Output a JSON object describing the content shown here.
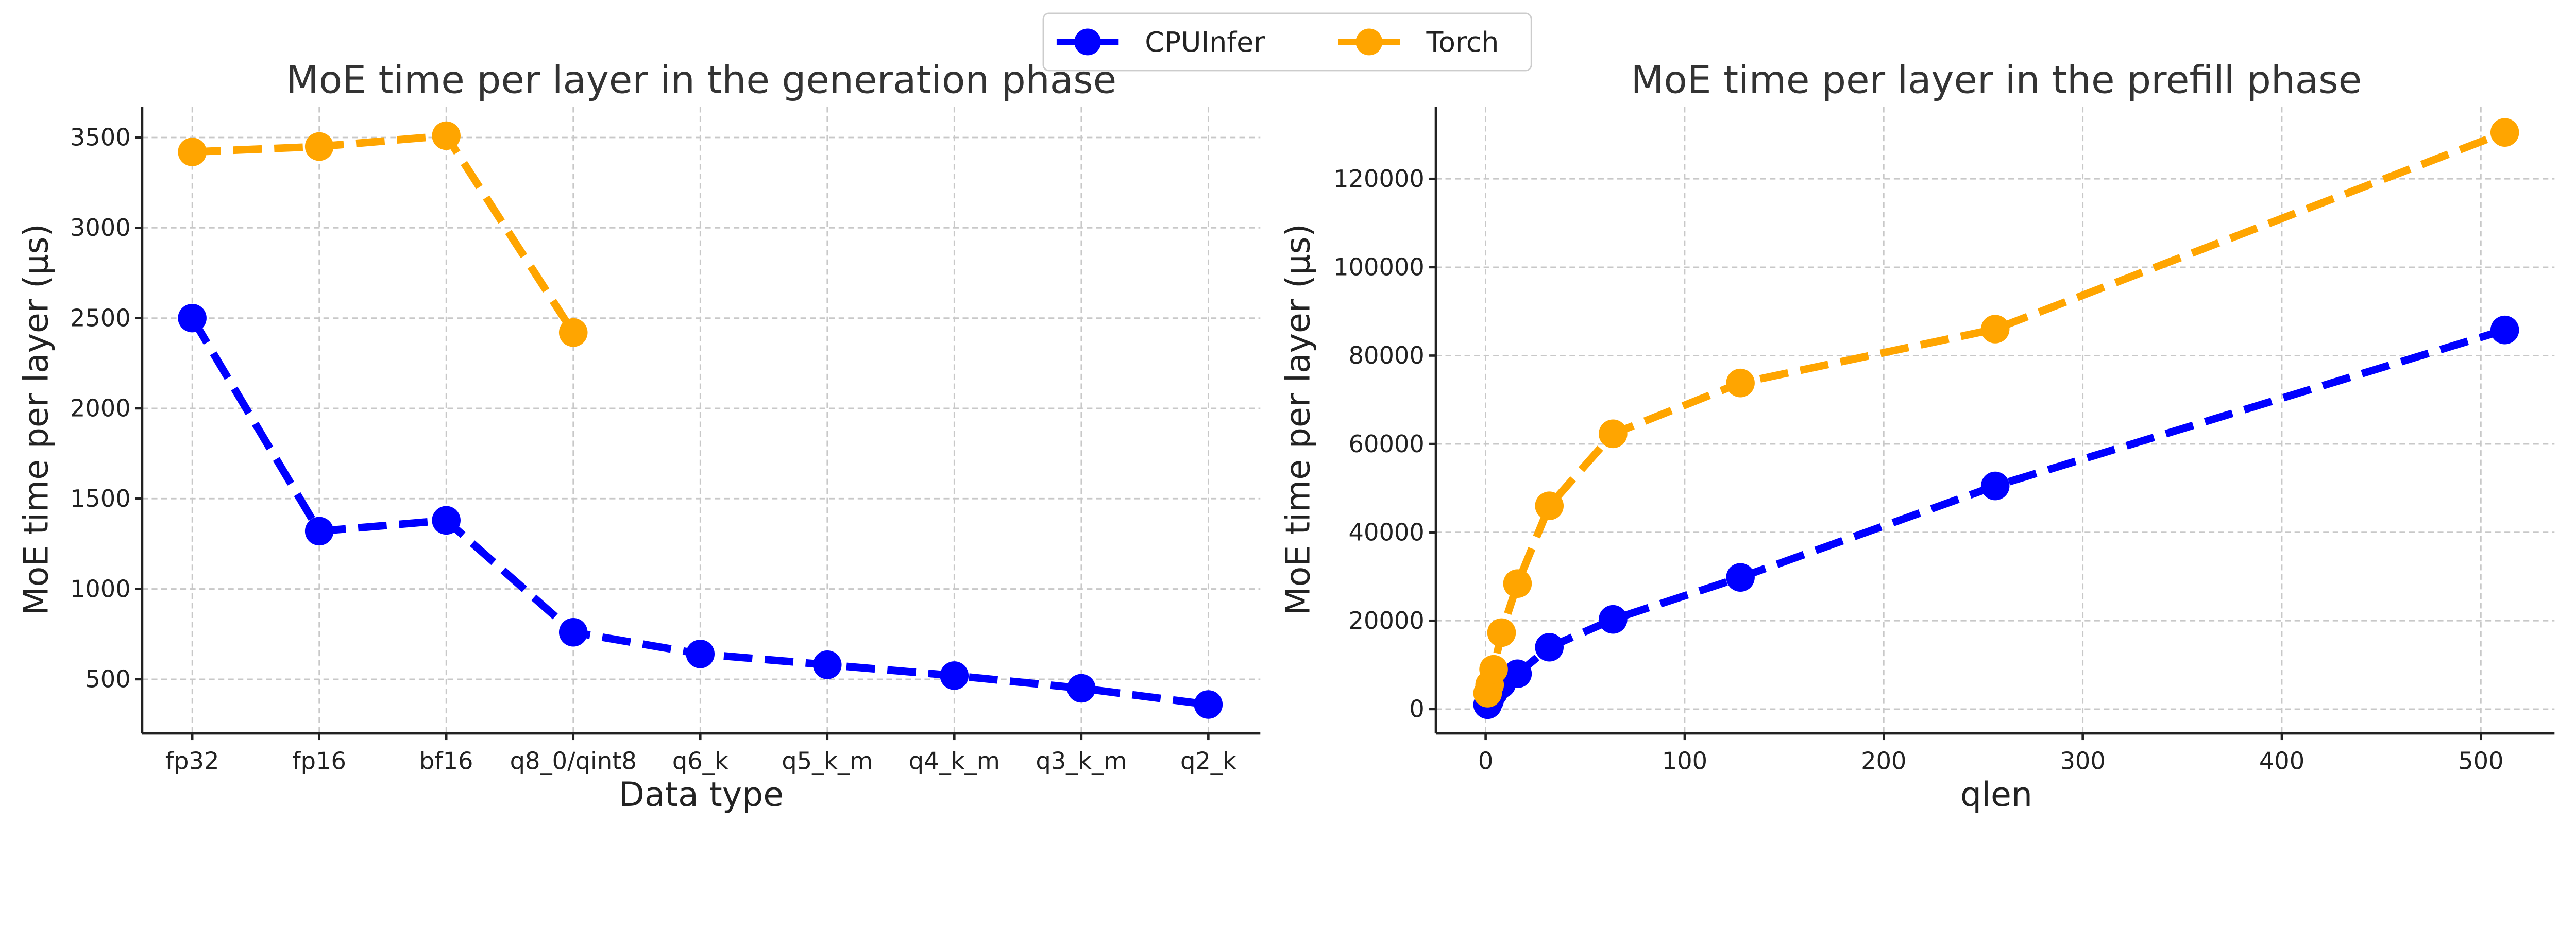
{
  "colors": {
    "CPUInfer": "#0000ff",
    "Torch": "#ffa500"
  },
  "legend": {
    "placement": "top-center",
    "entries": [
      "CPUInfer",
      "Torch"
    ]
  },
  "chart_data": [
    {
      "type": "line",
      "title": "MoE time per layer in the generation phase",
      "xlabel": "Data type",
      "ylabel": "MoE time per layer (µs)",
      "categories": [
        "fp32",
        "fp16",
        "bf16",
        "q8_0/qint8",
        "q6_k",
        "q5_k_m",
        "q4_k_m",
        "q3_k_m",
        "q2_k"
      ],
      "yticks": [
        500,
        1000,
        1500,
        2000,
        2500,
        3000,
        3500
      ],
      "ylim": [
        200,
        3670
      ],
      "grid": true,
      "series": [
        {
          "name": "CPUInfer",
          "values": [
            2500,
            1320,
            1380,
            760,
            640,
            580,
            520,
            450,
            360
          ]
        },
        {
          "name": "Torch",
          "values": [
            3420,
            3450,
            3510,
            2420,
            null,
            null,
            null,
            null,
            null
          ]
        }
      ]
    },
    {
      "type": "line",
      "title": "MoE time per layer in the prefill phase",
      "xlabel": "qlen",
      "ylabel": "MoE time per layer (µs)",
      "x": [
        1,
        2,
        4,
        8,
        16,
        32,
        64,
        128,
        256,
        512
      ],
      "xticks": [
        0,
        100,
        200,
        300,
        400,
        500
      ],
      "yticks": [
        0,
        20000,
        40000,
        60000,
        80000,
        100000,
        120000
      ],
      "xlim": [
        -25,
        537
      ],
      "ylim": [
        -5500,
        136300
      ],
      "grid": true,
      "series": [
        {
          "name": "CPUInfer",
          "values": [
            1000,
            2000,
            3800,
            5700,
            8000,
            14000,
            20300,
            29800,
            50500,
            85800
          ]
        },
        {
          "name": "Torch",
          "values": [
            3600,
            5500,
            9000,
            17300,
            28400,
            46000,
            62300,
            73800,
            86000,
            130500
          ]
        }
      ]
    }
  ]
}
